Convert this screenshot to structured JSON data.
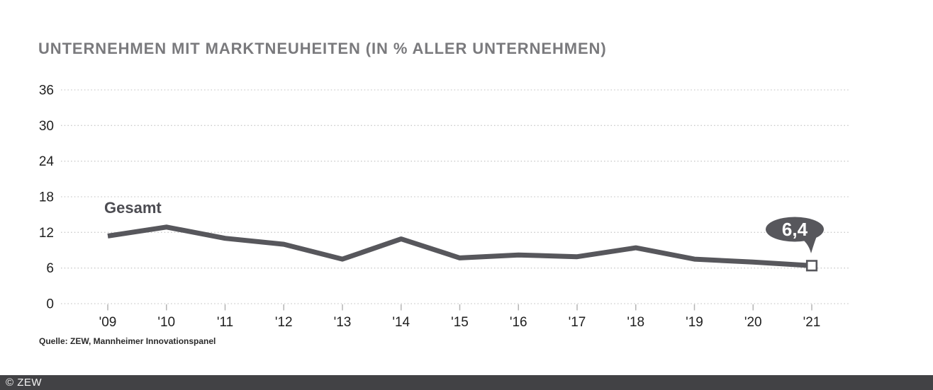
{
  "header": {
    "title": "UNTERNEHMEN MIT MARKTNEUHEITEN (IN % ALLER UNTERNEHMEN)"
  },
  "chart_data": {
    "type": "line",
    "title": "UNTERNEHMEN MIT MARKTNEUHEITEN (IN % ALLER UNTERNEHMEN)",
    "series_label": "Gesamt",
    "categories": [
      "'09",
      "'10",
      "'11",
      "'12",
      "'13",
      "'14",
      "'15",
      "'16",
      "'17",
      "'18",
      "'19",
      "'20",
      "'21"
    ],
    "values": [
      11.4,
      12.9,
      11.0,
      10.0,
      7.5,
      10.9,
      7.7,
      8.2,
      7.9,
      9.4,
      7.5,
      7.0,
      6.4
    ],
    "unit": "%",
    "ylim": [
      0,
      36
    ],
    "y_ticks": [
      36,
      30,
      24,
      18,
      12,
      6,
      0
    ],
    "grid": "dotted-horizontal",
    "legend_position": "inline-label",
    "annotation": {
      "label": "6,4",
      "year": "'21",
      "value": 6.4
    },
    "colors": {
      "line": "#57575c",
      "grid": "#c9c9c9",
      "tick": "#b5b5b5",
      "axis_text": "#1f1f1f",
      "title_text": "#7a7a7d",
      "callout_fill": "#57575c",
      "callout_text": "#ffffff",
      "marker_fill": "#ffffff"
    }
  },
  "source": {
    "text": "Quelle: ZEW, Mannheimer Innovationspanel"
  },
  "footer": {
    "text": "© ZEW"
  }
}
